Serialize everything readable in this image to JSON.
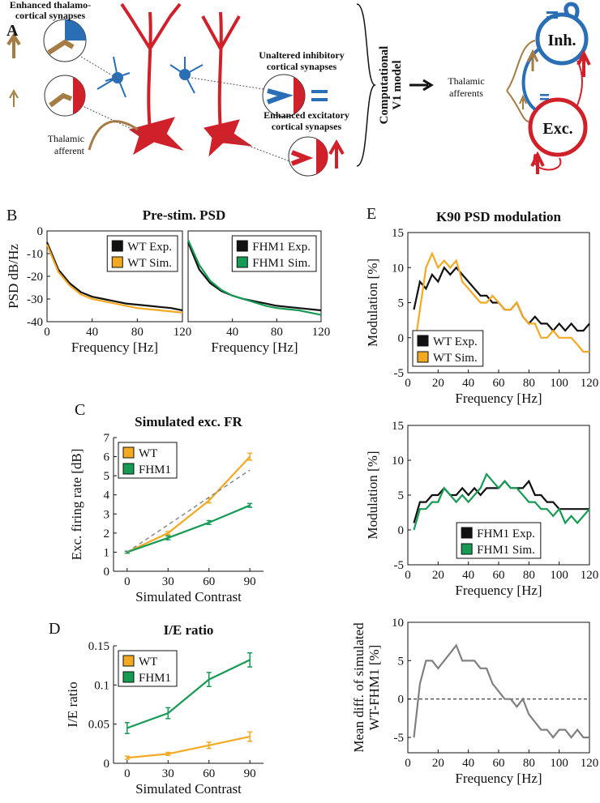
{
  "panel_labels": [
    "A",
    "B",
    "C",
    "D",
    "E"
  ],
  "diagram": {
    "thalamo_label": [
      "Enhanced thalamo-",
      "cortical synapses"
    ],
    "inhibitory_label": [
      "Unaltered inhibitory",
      "cortical synapses"
    ],
    "excitatory_label": [
      "Enhanced excitatory",
      "cortical synapses"
    ],
    "afferent_label": [
      "Thalamic",
      "afferent"
    ],
    "model_label": [
      "Computational",
      "V1 model"
    ],
    "afferents_label": [
      "Thalamic",
      "afferents"
    ],
    "inh_node": "Inh.",
    "exc_node": "Exc."
  },
  "chart_data": [
    {
      "type": "line",
      "title": "Pre-stim. PSD",
      "ylabel": "PSD dB/Hz",
      "xlabel": "Frequency [Hz]",
      "x": [
        0,
        10,
        20,
        30,
        40,
        50,
        60,
        70,
        80,
        90,
        100,
        110,
        120
      ],
      "xlim": [
        0,
        120
      ],
      "xticks": [
        0,
        40,
        80,
        120
      ],
      "ylim": [
        -40,
        0
      ],
      "yticks": [
        0,
        -10,
        -20,
        -30,
        -40
      ],
      "legend": "upper right",
      "series": [
        {
          "name": "WT Exp.",
          "color": "#111111",
          "values": [
            -5,
            -17,
            -23,
            -27,
            -29,
            -30,
            -31,
            -32,
            -32.5,
            -33,
            -33.5,
            -34,
            -35
          ]
        },
        {
          "name": "WT Sim.",
          "color": "#f4a922",
          "values": [
            -6,
            -18,
            -24,
            -28,
            -30,
            -31,
            -32,
            -33,
            -34,
            -34.5,
            -35,
            -35.5,
            -36
          ]
        }
      ]
    },
    {
      "type": "line",
      "xlabel": "Frequency [Hz]",
      "x": [
        0,
        10,
        20,
        30,
        40,
        50,
        60,
        70,
        80,
        90,
        100,
        110,
        120
      ],
      "xlim": [
        0,
        120
      ],
      "xticks": [
        40,
        80,
        120
      ],
      "ylim": [
        -40,
        0
      ],
      "legend": "upper right",
      "series": [
        {
          "name": "FHM1 Exp.",
          "color": "#111111",
          "values": [
            -5,
            -17,
            -23,
            -26.5,
            -28.5,
            -30,
            -31,
            -32,
            -33,
            -33.5,
            -34,
            -34.5,
            -35
          ]
        },
        {
          "name": "FHM1 Sim.",
          "color": "#169b54",
          "values": [
            -4,
            -15,
            -22,
            -26,
            -28.5,
            -30,
            -31.5,
            -33,
            -34,
            -34.5,
            -35,
            -36,
            -37
          ]
        }
      ]
    },
    {
      "type": "line",
      "title": "Simulated exc. FR",
      "ylabel": "Exc. firing rate [dB]",
      "xlabel": "Simulated Contrast",
      "x": [
        0,
        30,
        60,
        90
      ],
      "xlim": [
        -10,
        100
      ],
      "xticks": [
        0,
        30,
        60,
        90
      ],
      "ylim": [
        0,
        7
      ],
      "yticks": [
        0,
        1,
        2,
        3,
        4,
        5,
        6,
        7
      ],
      "legend": "upper left",
      "series": [
        {
          "name": "WT",
          "color": "#f4a922",
          "values": [
            1.0,
            2.0,
            3.7,
            6.0
          ],
          "errors": [
            0.05,
            0.08,
            0.12,
            0.18
          ]
        },
        {
          "name": "FHM1",
          "color": "#169b54",
          "values": [
            1.0,
            1.75,
            2.55,
            3.45
          ],
          "errors": [
            0.05,
            0.1,
            0.1,
            0.1
          ]
        },
        {
          "color": "#888888",
          "dashed": true,
          "values": [
            1.0,
            2.43,
            3.87,
            5.3
          ]
        }
      ]
    },
    {
      "type": "line",
      "title": "I/E ratio",
      "ylabel": "I/E ratio",
      "xlabel": "Simulated Contrast",
      "x": [
        0,
        30,
        60,
        90
      ],
      "xlim": [
        -10,
        100
      ],
      "xticks": [
        0,
        30,
        60,
        90
      ],
      "ylim": [
        0,
        0.15
      ],
      "yticks": [
        0,
        0.05,
        0.1,
        0.15
      ],
      "legend": "upper left",
      "series": [
        {
          "name": "WT",
          "color": "#f4a922",
          "values": [
            0.007,
            0.012,
            0.023,
            0.034
          ],
          "errors": [
            0.002,
            0.002,
            0.004,
            0.006
          ]
        },
        {
          "name": "FHM1",
          "color": "#169b54",
          "values": [
            0.045,
            0.064,
            0.107,
            0.132
          ],
          "errors": [
            0.007,
            0.007,
            0.009,
            0.009
          ]
        }
      ]
    },
    {
      "type": "line",
      "title": "K90 PSD modulation",
      "ylabel": "Modulation [%]",
      "xlabel": "Frequency [Hz]",
      "x": [
        4,
        8,
        12,
        16,
        20,
        24,
        28,
        32,
        36,
        40,
        44,
        48,
        52,
        56,
        60,
        64,
        68,
        72,
        76,
        80,
        84,
        88,
        92,
        96,
        100,
        104,
        108,
        112,
        116,
        120
      ],
      "xlim": [
        0,
        120
      ],
      "xticks": [
        0,
        20,
        40,
        60,
        80,
        100,
        120
      ],
      "ylim": [
        -5,
        15
      ],
      "yticks": [
        -5,
        0,
        5,
        10,
        15
      ],
      "legend": "lower left",
      "series": [
        {
          "name": "WT Exp.",
          "color": "#111111",
          "values": [
            4,
            8,
            7,
            9,
            8,
            10,
            9,
            10,
            9,
            8,
            7,
            6,
            6,
            5,
            5,
            4,
            4,
            5,
            3,
            2,
            3,
            2,
            2,
            1,
            2,
            1,
            2,
            1,
            1,
            2
          ]
        },
        {
          "name": "WT Sim.",
          "color": "#f4a922",
          "values": [
            -2,
            4,
            10,
            12,
            10,
            11,
            10,
            11,
            8,
            7,
            6,
            5,
            5,
            6,
            5,
            4,
            4,
            5,
            3,
            2,
            2,
            0,
            0,
            1,
            0,
            0,
            0,
            -1,
            -2,
            -2
          ]
        }
      ]
    },
    {
      "type": "line",
      "ylabel": "Modulation [%]",
      "xlabel": "Frequency [Hz]",
      "x": [
        4,
        8,
        12,
        16,
        20,
        24,
        28,
        32,
        36,
        40,
        44,
        48,
        52,
        56,
        60,
        64,
        68,
        72,
        76,
        80,
        84,
        88,
        92,
        96,
        100,
        104,
        108,
        112,
        116,
        120
      ],
      "xlim": [
        0,
        120
      ],
      "xticks": [
        0,
        20,
        40,
        60,
        80,
        100,
        120
      ],
      "ylim": [
        -5,
        15
      ],
      "yticks": [
        -5,
        0,
        5,
        10,
        15
      ],
      "legend": "lower center",
      "series": [
        {
          "name": "FHM1 Exp.",
          "color": "#111111",
          "values": [
            1,
            4,
            4,
            5,
            5,
            6,
            5,
            5,
            6,
            5,
            6,
            5,
            6,
            6,
            6,
            7,
            6,
            6,
            6,
            7,
            5,
            5,
            4,
            4,
            3,
            3,
            3,
            3,
            3,
            3
          ]
        },
        {
          "name": "FHM1 Sim.",
          "color": "#169b54",
          "values": [
            0,
            3,
            3,
            4,
            4,
            6,
            5,
            4,
            5,
            4,
            5,
            6,
            8,
            7,
            6,
            7,
            6,
            6,
            5,
            4,
            4,
            3,
            3,
            2,
            3,
            1,
            2,
            1,
            2,
            3
          ]
        }
      ]
    },
    {
      "type": "line",
      "ylabel": [
        "Mean diff. of simulated",
        "WT-FHM1 [%]"
      ],
      "xlabel": "Frequency [Hz]",
      "x": [
        4,
        8,
        12,
        16,
        20,
        24,
        28,
        32,
        36,
        40,
        44,
        48,
        52,
        56,
        60,
        64,
        68,
        72,
        76,
        80,
        84,
        88,
        92,
        96,
        100,
        104,
        108,
        112,
        116,
        120
      ],
      "xlim": [
        0,
        120
      ],
      "xticks": [
        0,
        20,
        40,
        60,
        80,
        100,
        120
      ],
      "ylim": [
        -7,
        10
      ],
      "yticks": [
        -5,
        0,
        5,
        10
      ],
      "hline": 0,
      "series": [
        {
          "color": "#808080",
          "values": [
            -5,
            2,
            5,
            5,
            4,
            5,
            6,
            7,
            5,
            5,
            5,
            4,
            4,
            2,
            1,
            0,
            0,
            -1,
            0,
            -2,
            -3,
            -4,
            -4,
            -5,
            -4,
            -4,
            -5,
            -4,
            -5,
            -5
          ]
        }
      ]
    }
  ]
}
